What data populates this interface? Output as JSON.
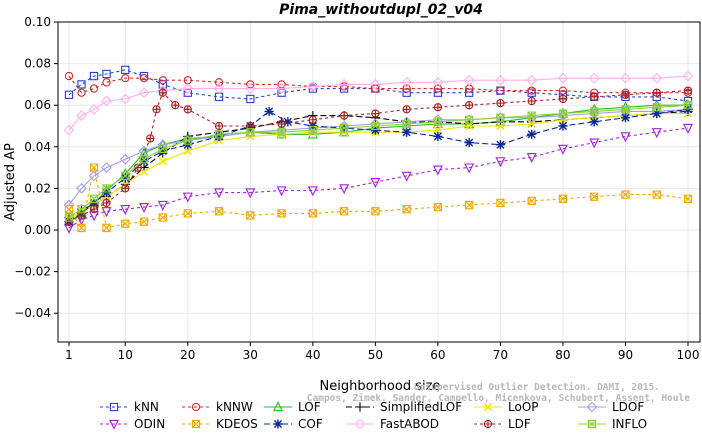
{
  "chart_data": {
    "type": "line",
    "title": "Pima_withoutdupl_02_v04",
    "xlabel": "Neighborhood size",
    "ylabel": "Adjusted AP",
    "xlim": [
      1,
      100
    ],
    "ylim": [
      -0.05,
      0.1
    ],
    "xticks": [
      1,
      10,
      20,
      30,
      40,
      50,
      60,
      70,
      80,
      90,
      100
    ],
    "yticks": [
      -0.04,
      -0.02,
      0.0,
      0.02,
      0.04,
      0.06,
      0.08,
      0.1
    ],
    "ytick_labels": [
      "−0.04",
      "−0.02",
      "0.00",
      "0.02",
      "0.04",
      "0.06",
      "0.08",
      "0.10"
    ],
    "legend_position": "bottom",
    "series": [
      {
        "name": "kNN",
        "color": "#2a3ed8",
        "marker": "square",
        "dash": "3,3",
        "x": [
          1,
          3,
          5,
          7,
          10,
          13,
          16,
          20,
          25,
          30,
          35,
          40,
          45,
          50,
          55,
          60,
          65,
          70,
          75,
          80,
          85,
          90,
          95,
          100
        ],
        "y": [
          0.065,
          0.07,
          0.074,
          0.075,
          0.077,
          0.074,
          0.07,
          0.066,
          0.064,
          0.063,
          0.066,
          0.068,
          0.068,
          0.068,
          0.066,
          0.066,
          0.066,
          0.067,
          0.066,
          0.065,
          0.064,
          0.064,
          0.064,
          0.062
        ]
      },
      {
        "name": "kNNW",
        "color": "#d8272a",
        "marker": "circle",
        "dash": "3,3",
        "x": [
          1,
          3,
          5,
          7,
          10,
          13,
          16,
          20,
          25,
          30,
          35,
          40,
          45,
          50,
          55,
          60,
          65,
          70,
          75,
          80,
          85,
          90,
          95,
          100
        ],
        "y": [
          0.074,
          0.066,
          0.068,
          0.071,
          0.073,
          0.073,
          0.072,
          0.072,
          0.071,
          0.07,
          0.07,
          0.069,
          0.069,
          0.068,
          0.068,
          0.068,
          0.068,
          0.067,
          0.067,
          0.067,
          0.066,
          0.066,
          0.066,
          0.066
        ]
      },
      {
        "name": "LOF",
        "color": "#22c020",
        "marker": "triangle",
        "dash": "",
        "x": [
          1,
          3,
          5,
          7,
          10,
          13,
          16,
          20,
          25,
          30,
          35,
          40,
          45,
          50,
          55,
          60,
          65,
          70,
          75,
          80,
          85,
          90,
          95,
          100
        ],
        "y": [
          0.004,
          0.008,
          0.013,
          0.019,
          0.027,
          0.037,
          0.041,
          0.044,
          0.045,
          0.047,
          0.046,
          0.046,
          0.047,
          0.049,
          0.05,
          0.051,
          0.051,
          0.052,
          0.054,
          0.056,
          0.058,
          0.059,
          0.06,
          0.06
        ]
      },
      {
        "name": "SimplifiedLOF",
        "color": "#000000",
        "marker": "plus",
        "dash": "6,3",
        "x": [
          1,
          3,
          5,
          7,
          10,
          13,
          16,
          20,
          25,
          30,
          35,
          40,
          45,
          50,
          55,
          60,
          65,
          70,
          75,
          80,
          85,
          90,
          95,
          100
        ],
        "y": [
          0.006,
          0.01,
          0.012,
          0.016,
          0.022,
          0.03,
          0.037,
          0.045,
          0.047,
          0.049,
          0.052,
          0.055,
          0.055,
          0.054,
          0.052,
          0.052,
          0.051,
          0.052,
          0.052,
          0.053,
          0.054,
          0.055,
          0.056,
          0.057
        ]
      },
      {
        "name": "LoOP",
        "color": "#f0e800",
        "marker": "cross",
        "dash": "",
        "x": [
          1,
          3,
          5,
          7,
          10,
          13,
          16,
          20,
          25,
          30,
          35,
          40,
          45,
          50,
          55,
          60,
          65,
          70,
          75,
          80,
          85,
          90,
          95,
          100
        ],
        "y": [
          0.005,
          0.009,
          0.012,
          0.016,
          0.022,
          0.028,
          0.033,
          0.038,
          0.043,
          0.045,
          0.046,
          0.047,
          0.047,
          0.047,
          0.047,
          0.048,
          0.05,
          0.05,
          0.051,
          0.053,
          0.054,
          0.055,
          0.056,
          0.056
        ]
      },
      {
        "name": "LDOF",
        "color": "#a0a0f0",
        "marker": "diamond",
        "dash": "",
        "x": [
          1,
          3,
          5,
          7,
          10,
          13,
          16,
          20,
          25,
          30,
          35,
          40,
          45,
          50,
          55,
          60,
          65,
          70,
          75,
          80,
          85,
          90,
          95,
          100
        ],
        "y": [
          0.012,
          0.02,
          0.026,
          0.03,
          0.034,
          0.038,
          0.041,
          0.043,
          0.045,
          0.047,
          0.048,
          0.049,
          0.05,
          0.051,
          0.052,
          0.053,
          0.053,
          0.054,
          0.054,
          0.055,
          0.056,
          0.057,
          0.057,
          0.058
        ]
      },
      {
        "name": "ODIN",
        "color": "#a020d8",
        "marker": "invtriangle",
        "dash": "3,3",
        "x": [
          1,
          3,
          5,
          7,
          10,
          13,
          16,
          20,
          25,
          30,
          35,
          40,
          45,
          50,
          55,
          60,
          65,
          70,
          75,
          80,
          85,
          90,
          95,
          100
        ],
        "y": [
          0.001,
          0.005,
          0.007,
          0.009,
          0.01,
          0.011,
          0.012,
          0.016,
          0.018,
          0.018,
          0.019,
          0.019,
          0.02,
          0.023,
          0.026,
          0.029,
          0.03,
          0.033,
          0.035,
          0.039,
          0.042,
          0.045,
          0.047,
          0.049
        ]
      },
      {
        "name": "KDEOS",
        "color": "#f0a800",
        "marker": "squarex",
        "dash": "3,3",
        "x": [
          1,
          3,
          5,
          7,
          10,
          13,
          16,
          20,
          25,
          30,
          35,
          40,
          45,
          50,
          55,
          60,
          65,
          70,
          75,
          80,
          85,
          90,
          95,
          100
        ],
        "y": [
          0.01,
          0.001,
          0.03,
          0.001,
          0.003,
          0.004,
          0.006,
          0.008,
          0.009,
          0.007,
          0.008,
          0.008,
          0.009,
          0.009,
          0.01,
          0.011,
          0.012,
          0.013,
          0.014,
          0.015,
          0.016,
          0.017,
          0.017,
          0.015
        ]
      },
      {
        "name": "COF",
        "color": "#0a2a9a",
        "marker": "asterisk",
        "dash": "6,3",
        "x": [
          1,
          3,
          5,
          7,
          10,
          13,
          16,
          20,
          25,
          30,
          33,
          36,
          40,
          45,
          50,
          55,
          60,
          65,
          70,
          75,
          80,
          85,
          90,
          95,
          100
        ],
        "y": [
          0.004,
          0.008,
          0.013,
          0.018,
          0.025,
          0.033,
          0.038,
          0.041,
          0.045,
          0.05,
          0.057,
          0.052,
          0.05,
          0.049,
          0.048,
          0.047,
          0.045,
          0.042,
          0.041,
          0.046,
          0.05,
          0.052,
          0.054,
          0.056,
          0.058
        ]
      },
      {
        "name": "FastABOD",
        "color": "#ffb0ec",
        "marker": "diamond",
        "dash": "",
        "x": [
          1,
          3,
          5,
          7,
          10,
          13,
          16,
          20,
          25,
          30,
          35,
          40,
          45,
          50,
          55,
          60,
          65,
          70,
          75,
          80,
          85,
          90,
          95,
          100
        ],
        "y": [
          0.048,
          0.055,
          0.058,
          0.062,
          0.063,
          0.066,
          0.067,
          0.068,
          0.068,
          0.068,
          0.068,
          0.069,
          0.07,
          0.07,
          0.071,
          0.071,
          0.072,
          0.072,
          0.072,
          0.073,
          0.073,
          0.073,
          0.073,
          0.074
        ]
      },
      {
        "name": "LDF",
        "color": "#a82020",
        "marker": "circleplus",
        "dash": "3,3",
        "x": [
          1,
          3,
          5,
          7,
          10,
          12,
          14,
          15,
          16,
          18,
          20,
          25,
          30,
          35,
          40,
          45,
          50,
          55,
          60,
          65,
          70,
          75,
          80,
          85,
          90,
          95,
          100
        ],
        "y": [
          0.004,
          0.007,
          0.01,
          0.013,
          0.02,
          0.03,
          0.044,
          0.058,
          0.066,
          0.06,
          0.058,
          0.05,
          0.05,
          0.051,
          0.053,
          0.055,
          0.056,
          0.058,
          0.059,
          0.06,
          0.061,
          0.062,
          0.063,
          0.064,
          0.065,
          0.066,
          0.067
        ]
      },
      {
        "name": "INFLO",
        "color": "#90d030",
        "marker": "squarex",
        "dash": "",
        "x": [
          1,
          3,
          5,
          7,
          10,
          13,
          16,
          20,
          25,
          30,
          35,
          40,
          45,
          50,
          55,
          60,
          65,
          70,
          75,
          80,
          85,
          90,
          95,
          100
        ],
        "y": [
          0.006,
          0.01,
          0.015,
          0.02,
          0.026,
          0.034,
          0.039,
          0.043,
          0.046,
          0.047,
          0.047,
          0.048,
          0.049,
          0.05,
          0.051,
          0.052,
          0.053,
          0.054,
          0.055,
          0.056,
          0.057,
          0.058,
          0.059,
          0.06
        ]
      }
    ]
  },
  "watermark": {
    "line1": "Unsupervised Outlier Detection. DAMI, 2015.",
    "line2": "Campos, Zimek, Sander, Campello, Micenkova, Schubert, Assent, Houle"
  },
  "legend": {
    "rows": [
      [
        "kNN",
        "kNNW",
        "LOF",
        "SimplifiedLOF",
        "LoOP",
        "LDOF"
      ],
      [
        "ODIN",
        "KDEOS",
        "COF",
        "FastABOD",
        "LDF",
        "INFLO"
      ]
    ]
  }
}
